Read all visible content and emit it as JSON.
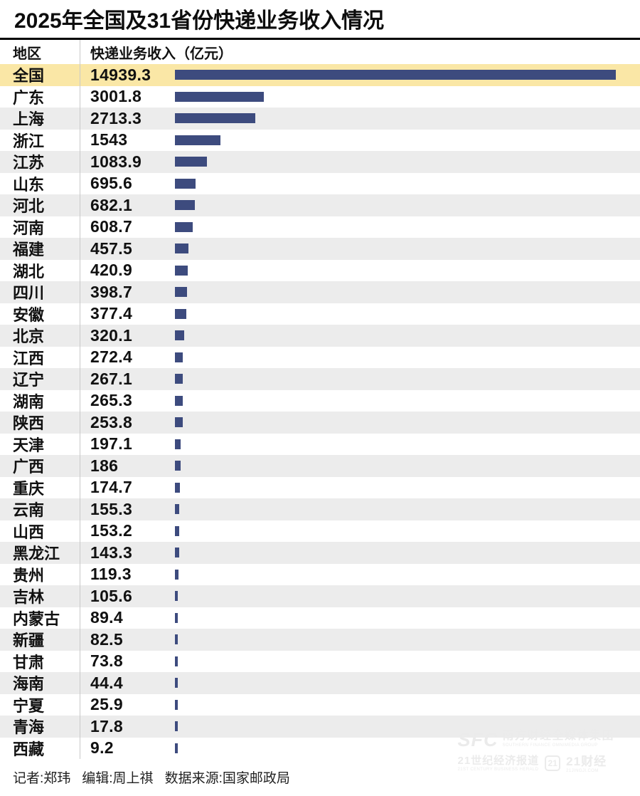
{
  "title": "2025年全国及31省份快递业务收入情况",
  "table": {
    "region_header": "地区",
    "value_header": "快递业务收入（亿元）"
  },
  "chart_data": {
    "type": "bar",
    "orientation": "horizontal",
    "title": "2025年全国及31省份快递业务收入情况",
    "unit": "亿元",
    "categories": [
      "全国",
      "广东",
      "上海",
      "浙江",
      "江苏",
      "山东",
      "河北",
      "河南",
      "福建",
      "湖北",
      "四川",
      "安徽",
      "北京",
      "江西",
      "辽宁",
      "湖南",
      "陕西",
      "天津",
      "广西",
      "重庆",
      "云南",
      "山西",
      "黑龙江",
      "贵州",
      "吉林",
      "内蒙古",
      "新疆",
      "甘肃",
      "海南",
      "宁夏",
      "青海",
      "西藏"
    ],
    "values": [
      14939.3,
      3001.8,
      2713.3,
      1543,
      1083.9,
      695.6,
      682.1,
      608.7,
      457.5,
      420.9,
      398.7,
      377.4,
      320.1,
      272.4,
      267.1,
      265.3,
      253.8,
      197.1,
      186,
      174.7,
      155.3,
      153.2,
      143.3,
      119.3,
      105.6,
      89.4,
      82.5,
      73.8,
      44.4,
      25.9,
      17.8,
      9.2
    ],
    "xlim": [
      0,
      14939.3
    ],
    "highlight_category": "全国",
    "bar_color": "#3d4b7e",
    "highlight_row_color": "#fae7a6",
    "stripe_color": "#ececec",
    "legend": "none",
    "grid": "off"
  },
  "footer": {
    "reporter": "记者:郑玮",
    "editor": "编辑:周上祺",
    "source": "数据来源:国家邮政局"
  },
  "watermark": {
    "sfc": "SFC",
    "group_cn": "南方财经全媒体集团",
    "group_en": "SOUTHERN FINANCE OMNIMEDIA GROUP",
    "herald_cn": "21世纪经济报道",
    "herald_en": "21ST CENTURY BUSINESS HERALD",
    "badge": "21",
    "brand_cn": "21财经",
    "brand_en": "21JINGJI.COM"
  }
}
